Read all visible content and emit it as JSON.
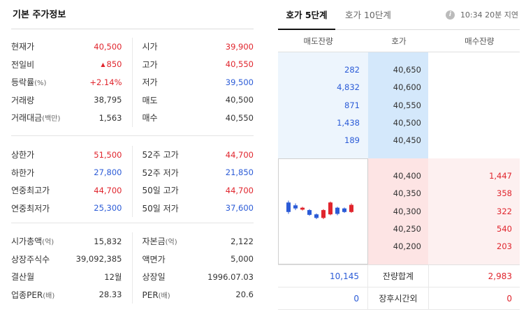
{
  "left": {
    "title": "기본 주가정보",
    "group1": [
      {
        "l_label": "현재가",
        "l_sub": "",
        "l_val": "40,500",
        "l_color": "red",
        "r_label": "시가",
        "r_sub": "",
        "r_val": "39,900",
        "r_color": "red"
      },
      {
        "l_label": "전일비",
        "l_sub": "",
        "l_val": "850",
        "l_color": "red",
        "l_arrow": "▲",
        "r_label": "고가",
        "r_sub": "",
        "r_val": "40,550",
        "r_color": "red"
      },
      {
        "l_label": "등락률",
        "l_sub": "(%)",
        "l_val": "+2.14%",
        "l_color": "red",
        "r_label": "저가",
        "r_sub": "",
        "r_val": "39,500",
        "r_color": "blue"
      },
      {
        "l_label": "거래량",
        "l_sub": "",
        "l_val": "38,795",
        "l_color": "",
        "r_label": "매도",
        "r_sub": "",
        "r_val": "40,500",
        "r_color": ""
      },
      {
        "l_label": "거래대금",
        "l_sub": "(백만)",
        "l_val": "1,563",
        "l_color": "",
        "r_label": "매수",
        "r_sub": "",
        "r_val": "40,550",
        "r_color": ""
      }
    ],
    "group2": [
      {
        "l_label": "상한가",
        "l_val": "51,500",
        "l_color": "red",
        "r_label": "52주 고가",
        "r_val": "44,700",
        "r_color": "red"
      },
      {
        "l_label": "하한가",
        "l_val": "27,800",
        "l_color": "blue",
        "r_label": "52주 저가",
        "r_val": "21,850",
        "r_color": "blue"
      },
      {
        "l_label": "연중최고가",
        "l_val": "44,700",
        "l_color": "red",
        "r_label": "50일 고가",
        "r_val": "44,700",
        "r_color": "red"
      },
      {
        "l_label": "연중최저가",
        "l_val": "25,300",
        "l_color": "blue",
        "r_label": "50일 저가",
        "r_val": "37,600",
        "r_color": "blue"
      }
    ],
    "group3": [
      {
        "l_label": "시가총액",
        "l_sub": "(억)",
        "l_val": "15,832",
        "r_label": "자본금",
        "r_sub": "(억)",
        "r_val": "2,122"
      },
      {
        "l_label": "상장주식수",
        "l_sub": "",
        "l_val": "39,092,385",
        "r_label": "액면가",
        "r_sub": "",
        "r_val": "5,000"
      },
      {
        "l_label": "결산월",
        "l_sub": "",
        "l_val": "12월",
        "r_label": "상장일",
        "r_sub": "",
        "r_val": "1996.07.03"
      },
      {
        "l_label": "업종PER",
        "l_sub": "(배)",
        "l_val": "28.33",
        "r_label": "PER",
        "r_sub": "(배)",
        "r_val": "20.6"
      }
    ]
  },
  "right": {
    "tabs": [
      "호가 5단계",
      "호가 10단계"
    ],
    "active_tab": 0,
    "info_icon_glyph": "i",
    "time_info": "10:34 20분 지연",
    "headers": [
      "매도잔량",
      "호가",
      "매수잔량"
    ],
    "asks": [
      {
        "qty": "282",
        "price": "40,650"
      },
      {
        "qty": "4,832",
        "price": "40,600"
      },
      {
        "qty": "871",
        "price": "40,550"
      },
      {
        "qty": "1,438",
        "price": "40,500"
      },
      {
        "qty": "189",
        "price": "40,450"
      }
    ],
    "bids": [
      {
        "price": "40,400",
        "qty": "1,447"
      },
      {
        "price": "40,350",
        "qty": "358"
      },
      {
        "price": "40,300",
        "qty": "322"
      },
      {
        "price": "40,250",
        "qty": "540"
      },
      {
        "price": "40,200",
        "qty": "203"
      }
    ],
    "totals": {
      "ask": "10,145",
      "label": "잔량합계",
      "bid": "2,983"
    },
    "after_hours": {
      "ask": "0",
      "label": "장후시간외",
      "bid": "0"
    }
  },
  "chart_data": {
    "type": "candlestick",
    "colors": {
      "up": "#e0252d",
      "down": "#2b5bd7"
    },
    "candles": [
      {
        "o": 0.7,
        "c": 0.3,
        "h": 0.78,
        "l": 0.22
      },
      {
        "o": 0.58,
        "c": 0.45,
        "h": 0.66,
        "l": 0.38
      },
      {
        "o": 0.4,
        "c": 0.48,
        "h": 0.52,
        "l": 0.36
      },
      {
        "o": 0.38,
        "c": 0.18,
        "h": 0.42,
        "l": 0.14
      },
      {
        "o": 0.2,
        "c": 0.05,
        "h": 0.24,
        "l": 0.0
      },
      {
        "o": 0.05,
        "c": 0.38,
        "h": 0.42,
        "l": 0.0
      },
      {
        "o": 0.2,
        "c": 0.7,
        "h": 0.74,
        "l": 0.16
      },
      {
        "o": 0.48,
        "c": 0.22,
        "h": 0.52,
        "l": 0.16
      },
      {
        "o": 0.45,
        "c": 0.3,
        "h": 0.49,
        "l": 0.26
      },
      {
        "o": 0.3,
        "c": 0.6,
        "h": 0.66,
        "l": 0.26
      }
    ]
  }
}
